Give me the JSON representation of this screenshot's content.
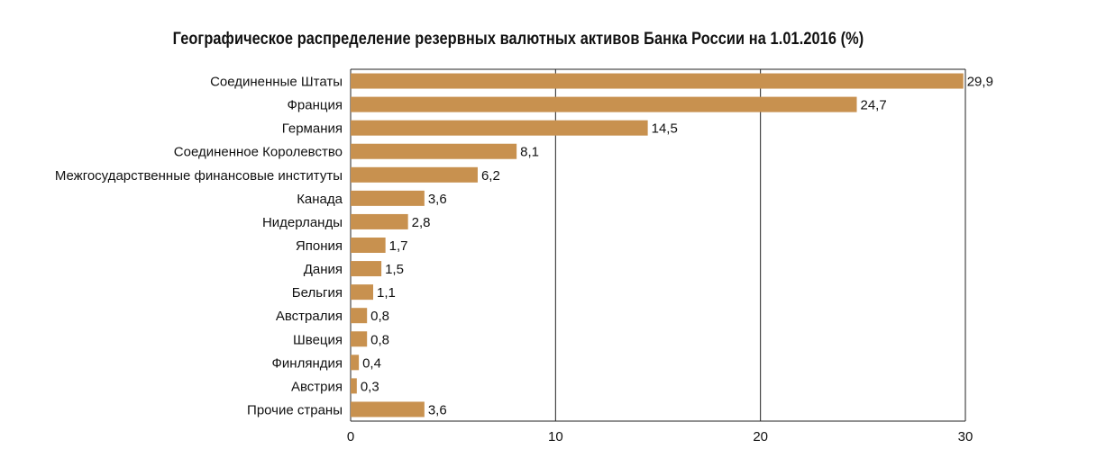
{
  "chart_data": {
    "type": "bar",
    "orientation": "horizontal",
    "title": "Географическое распределение резервных валютных активов Банка России на 1.01.2016 (%)",
    "categories": [
      "Соединенные Штаты",
      "Франция",
      "Германия",
      "Соединенное Королевство",
      "Межгосударственные финансовые институты",
      "Канада",
      "Нидерланды",
      "Япония",
      "Дания",
      "Бельгия",
      "Австралия",
      "Швеция",
      "Финляндия",
      "Австрия",
      "Прочие страны"
    ],
    "values": [
      29.9,
      24.7,
      14.5,
      8.1,
      6.2,
      3.6,
      2.8,
      1.7,
      1.5,
      1.1,
      0.8,
      0.8,
      0.4,
      0.3,
      3.6
    ],
    "value_labels": [
      "29,9",
      "24,7",
      "14,5",
      "8,1",
      "6,2",
      "3,6",
      "2,8",
      "1,7",
      "1,5",
      "1,1",
      "0,8",
      "0,8",
      "0,4",
      "0,3",
      "3,6"
    ],
    "xlim": [
      0,
      30
    ],
    "xticks": [
      "0",
      "10",
      "20",
      "30"
    ],
    "grid": true,
    "bar_color": "#C8914F",
    "grid_color": "#222222"
  }
}
